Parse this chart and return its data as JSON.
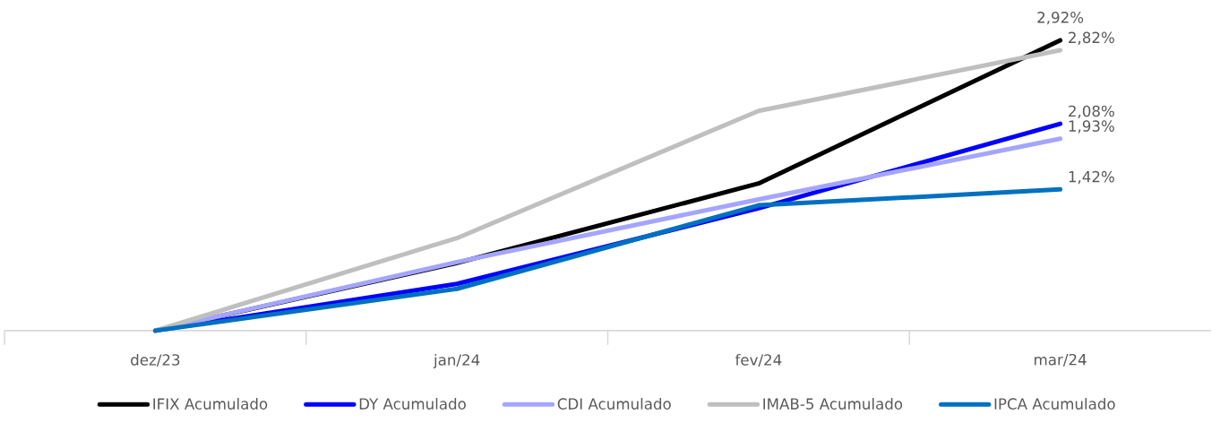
{
  "chart_data": {
    "type": "line",
    "categories": [
      "dez/23",
      "jan/24",
      "fev/24",
      "mar/24"
    ],
    "series": [
      {
        "name": "IFIX Acumulado",
        "color": "#000000",
        "values": [
          0,
          0.68,
          1.48,
          2.92
        ],
        "value_labels": [
          null,
          null,
          null,
          "2,92%"
        ]
      },
      {
        "name": "DY Acumulado",
        "color": "#0000ff",
        "values": [
          0,
          0.47,
          1.23,
          2.08
        ],
        "value_labels": [
          null,
          null,
          null,
          "2,08%"
        ]
      },
      {
        "name": "CDI Acumulado",
        "color": "#a5a5ff",
        "values": [
          0,
          0.69,
          1.32,
          1.93
        ],
        "value_labels": [
          null,
          null,
          null,
          "1,93%"
        ]
      },
      {
        "name": "IMAB-5 Acumulado",
        "color": "#bfbfbf",
        "values": [
          0,
          0.93,
          2.21,
          2.82
        ],
        "value_labels": [
          null,
          null,
          null,
          "2,82%"
        ]
      },
      {
        "name": "IPCA Acumulado",
        "color": "#0070c0",
        "values": [
          0,
          0.42,
          1.26,
          1.42
        ],
        "value_labels": [
          null,
          null,
          null,
          "1,42%"
        ]
      }
    ],
    "tick_labels": "x",
    "grid": false,
    "legend": "bottom",
    "marker": "none",
    "line_style": "solid"
  }
}
